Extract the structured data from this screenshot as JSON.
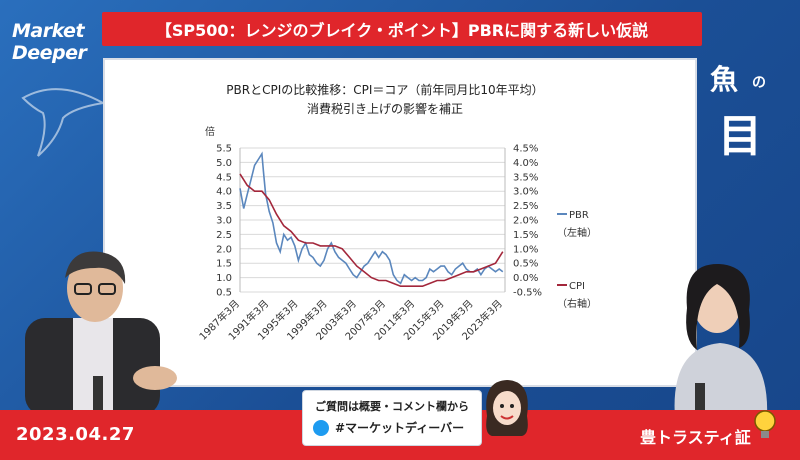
{
  "header": {
    "logo_line1": "Market",
    "logo_line2": "Deeper",
    "title": "【SP500：レンジのブレイク・ポイント】PBRに関する新しい仮説",
    "corner_k1": "魚",
    "corner_k2": "の",
    "corner_k3": "目"
  },
  "footer": {
    "date": "2023.04.27",
    "question_line1": "ご質問は概要・コメント欄から",
    "question_line2": "#マーケットディーバー",
    "brand": "豊トラスティ証"
  },
  "colors": {
    "accent_red": "#e0262b",
    "background_blue": "#1f5fa8",
    "pbr_line": "#5b87bd",
    "cpi_line": "#a3273b"
  },
  "chart_data": {
    "type": "line",
    "title_line1": "PBRとCPIの比較推移：CPI＝コア（前年同月比10年平均）",
    "title_line2": "消費税引き上げの影響を補正",
    "ylabel_left": "倍",
    "left_ticks": [
      "0.5",
      "1.0",
      "1.5",
      "2.0",
      "2.5",
      "3.0",
      "3.5",
      "4.0",
      "4.5",
      "5.0",
      "5.5"
    ],
    "right_ticks": [
      "-0.5%",
      "0.0%",
      "0.5%",
      "1.0%",
      "1.5%",
      "2.0%",
      "2.5%",
      "3.0%",
      "3.5%",
      "4.0%",
      "4.5%"
    ],
    "ylim_left": [
      0.5,
      5.5
    ],
    "ylim_right": [
      -0.5,
      4.5
    ],
    "x_tick_labels": [
      "1987年3月",
      "1991年3月",
      "1995年3月",
      "1999年3月",
      "2003年3月",
      "2007年3月",
      "2011年3月",
      "2015年3月",
      "2019年3月",
      "2023年3月"
    ],
    "x_tick_years": [
      1987,
      1991,
      1995,
      1999,
      2003,
      2007,
      2011,
      2015,
      2019,
      2023
    ],
    "xlim": [
      1987,
      2023.3
    ],
    "grid": true,
    "legend_position": "right",
    "series": [
      {
        "name": "PBR",
        "legend_sub": "（左軸）",
        "axis": "left",
        "x": [
          1987,
          1987.5,
          1988,
          1988.5,
          1989,
          1989.5,
          1990,
          1990.2,
          1990.5,
          1991,
          1991.5,
          1992,
          1992.5,
          1993,
          1993.5,
          1994,
          1994.5,
          1995,
          1995.5,
          1996,
          1996.5,
          1997,
          1997.5,
          1998,
          1998.5,
          1999,
          1999.5,
          2000,
          2000.5,
          2001,
          2001.5,
          2002,
          2002.5,
          2003,
          2003.5,
          2004,
          2004.5,
          2005,
          2005.5,
          2006,
          2006.5,
          2007,
          2007.5,
          2008,
          2008.5,
          2009,
          2009.5,
          2010,
          2010.5,
          2011,
          2011.5,
          2012,
          2012.5,
          2013,
          2013.5,
          2014,
          2014.5,
          2015,
          2015.5,
          2016,
          2016.5,
          2017,
          2017.5,
          2018,
          2018.5,
          2019,
          2019.5,
          2020,
          2020.5,
          2021,
          2021.5,
          2022,
          2022.5,
          2023
        ],
        "values": [
          4.1,
          3.4,
          3.9,
          4.4,
          4.9,
          5.1,
          5.3,
          4.7,
          3.9,
          3.3,
          2.9,
          2.2,
          1.9,
          2.5,
          2.3,
          2.4,
          2.1,
          1.6,
          2.0,
          2.2,
          1.8,
          1.7,
          1.5,
          1.4,
          1.6,
          2.0,
          2.2,
          1.9,
          1.7,
          1.6,
          1.5,
          1.3,
          1.1,
          1.0,
          1.2,
          1.4,
          1.5,
          1.7,
          1.9,
          1.7,
          1.9,
          1.8,
          1.6,
          1.1,
          0.9,
          0.8,
          1.1,
          1.0,
          0.9,
          1.0,
          0.9,
          0.9,
          1.0,
          1.3,
          1.2,
          1.3,
          1.4,
          1.4,
          1.2,
          1.1,
          1.3,
          1.4,
          1.5,
          1.3,
          1.2,
          1.2,
          1.3,
          1.1,
          1.3,
          1.4,
          1.3,
          1.2,
          1.3,
          1.2
        ]
      },
      {
        "name": "CPI",
        "legend_sub": "（右軸）",
        "axis": "right",
        "x": [
          1987,
          1988,
          1989,
          1990,
          1991,
          1992,
          1993,
          1994,
          1995,
          1996,
          1997,
          1998,
          1999,
          2000,
          2001,
          2002,
          2003,
          2004,
          2005,
          2006,
          2007,
          2008,
          2009,
          2010,
          2011,
          2012,
          2013,
          2014,
          2015,
          2016,
          2017,
          2018,
          2019,
          2020,
          2021,
          2022,
          2023
        ],
        "values": [
          3.6,
          3.2,
          3.0,
          3.0,
          2.7,
          2.2,
          1.8,
          1.6,
          1.3,
          1.2,
          1.2,
          1.1,
          1.1,
          1.1,
          1.0,
          0.7,
          0.4,
          0.2,
          0.0,
          -0.1,
          -0.1,
          -0.2,
          -0.3,
          -0.3,
          -0.3,
          -0.3,
          -0.2,
          -0.1,
          -0.1,
          0.0,
          0.1,
          0.2,
          0.2,
          0.3,
          0.4,
          0.5,
          0.9
        ]
      }
    ]
  }
}
